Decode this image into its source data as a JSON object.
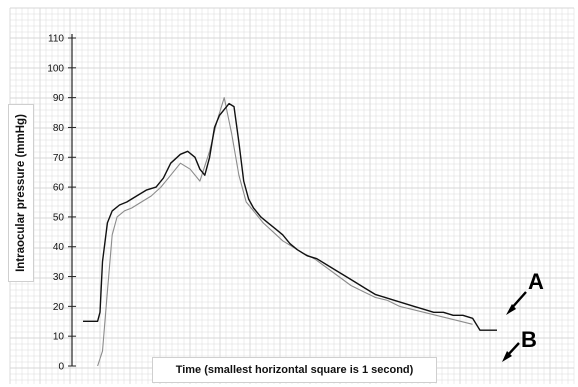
{
  "chart_data": {
    "type": "line",
    "ylabel": "Intraocular pressure (mmHg)",
    "xlabel": "Time (smallest horizontal square is 1 second)",
    "ylim": [
      0,
      110
    ],
    "yticks": [
      "0",
      "10",
      "20",
      "30",
      "40",
      "50",
      "60",
      "70",
      "80",
      "90",
      "100",
      "110"
    ],
    "grid": true,
    "colors": {
      "trace_a": "#111111",
      "trace_b": "#8c8c8c",
      "grid": "#d7d7d7"
    },
    "series": [
      {
        "x": [
          0,
          3,
          6,
          7,
          8,
          10,
          12,
          15,
          18,
          22,
          26,
          30,
          33,
          36,
          40,
          43,
          46,
          48,
          50,
          52,
          54,
          56,
          58,
          60,
          62,
          64,
          66,
          68,
          70,
          73,
          76,
          79,
          82,
          85,
          88,
          92,
          96,
          100,
          104,
          108,
          112,
          116,
          120,
          124,
          128,
          132,
          136,
          140,
          144,
          148,
          152,
          156,
          160,
          163,
          166,
          170
        ],
        "values": [
          15,
          15,
          15,
          18,
          35,
          48,
          52,
          54,
          55,
          57,
          59,
          60,
          63,
          68,
          71,
          72,
          70,
          66,
          64,
          70,
          80,
          84,
          86,
          88,
          87,
          75,
          62,
          56,
          53,
          50,
          48,
          46,
          44,
          41,
          39,
          37,
          36,
          34,
          32,
          30,
          28,
          26,
          24,
          23,
          22,
          21,
          20,
          19,
          18,
          18,
          17,
          17,
          16,
          12,
          12,
          12
        ]
      },
      {
        "x": [
          6,
          8,
          10,
          12,
          14,
          17,
          20,
          24,
          28,
          32,
          36,
          40,
          44,
          48,
          52,
          55,
          58,
          61,
          64,
          67,
          70,
          74,
          78,
          82,
          86,
          90,
          95,
          100,
          105,
          110,
          115,
          120,
          125,
          130,
          135,
          140,
          145,
          150,
          155,
          160
        ],
        "values": [
          0,
          5,
          25,
          44,
          50,
          52,
          53,
          55,
          57,
          60,
          64,
          68,
          66,
          62,
          72,
          82,
          90,
          78,
          64,
          55,
          52,
          48,
          45,
          42,
          40,
          38,
          36,
          33,
          30,
          27,
          25,
          23,
          22,
          20,
          19,
          18,
          17,
          16,
          15,
          14
        ]
      }
    ],
    "annotations": [
      "A",
      "B"
    ]
  }
}
